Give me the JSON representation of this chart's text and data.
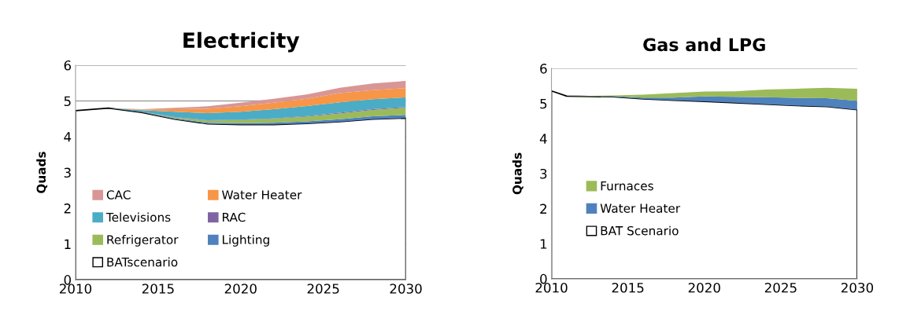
{
  "chart_data": [
    {
      "type": "area",
      "title": "Electricity",
      "ylabel": "Quads",
      "stacked": true,
      "x": [
        2010,
        2012,
        2014,
        2016,
        2018,
        2020,
        2022,
        2024,
        2026,
        2028,
        2030
      ],
      "series": [
        {
          "name": "BATscenario",
          "color": "#ffffff",
          "values": [
            4.73,
            4.8,
            4.68,
            4.49,
            4.36,
            4.34,
            4.34,
            4.37,
            4.42,
            4.49,
            4.52
          ]
        },
        {
          "name": "Lighting",
          "color": "#4f81bd",
          "values": [
            0,
            0,
            0.01,
            0.02,
            0.03,
            0.04,
            0.05,
            0.06,
            0.07,
            0.08,
            0.09
          ]
        },
        {
          "name": "Refrigerator",
          "color": "#9bbb59",
          "values": [
            0,
            0,
            0.01,
            0.03,
            0.06,
            0.09,
            0.11,
            0.13,
            0.16,
            0.18,
            0.2
          ]
        },
        {
          "name": "RAC",
          "color": "#8064a2",
          "values": [
            0,
            0,
            0,
            0.01,
            0.01,
            0.01,
            0.01,
            0.02,
            0.02,
            0.02,
            0.02
          ]
        },
        {
          "name": "Televisions",
          "color": "#4bacc6",
          "values": [
            0,
            0,
            0.04,
            0.15,
            0.2,
            0.22,
            0.26,
            0.28,
            0.29,
            0.28,
            0.27
          ]
        },
        {
          "name": "Water Heater",
          "color": "#f79646",
          "values": [
            0,
            0,
            0.02,
            0.07,
            0.12,
            0.15,
            0.18,
            0.2,
            0.26,
            0.25,
            0.26
          ]
        },
        {
          "name": "CAC",
          "color": "#d99694",
          "values": [
            0,
            0,
            0.01,
            0.04,
            0.07,
            0.1,
            0.11,
            0.12,
            0.15,
            0.19,
            0.2
          ]
        }
      ],
      "xlim": [
        2010,
        2030
      ],
      "xticks": [
        2010,
        2015,
        2020,
        2025,
        2030
      ],
      "ylim": [
        0,
        6
      ],
      "yticks": [
        0,
        1,
        2,
        3,
        4,
        5,
        6
      ],
      "grid": "y",
      "legend": "lower left"
    },
    {
      "type": "area",
      "title": "Gas and LPG",
      "ylabel": "Quads",
      "stacked": true,
      "x": [
        2010,
        2011,
        2014,
        2016,
        2018,
        2020,
        2022,
        2024,
        2026,
        2028,
        2030
      ],
      "series": [
        {
          "name": "BAT Scenario",
          "color": "#ffffff",
          "values": [
            5.36,
            5.21,
            5.19,
            5.13,
            5.09,
            5.06,
            5.02,
            4.98,
            4.94,
            4.91,
            4.82
          ]
        },
        {
          "name": "Water Heater",
          "color": "#4f81bd",
          "values": [
            0,
            0,
            0.02,
            0.04,
            0.08,
            0.14,
            0.17,
            0.2,
            0.22,
            0.24,
            0.26
          ]
        },
        {
          "name": "Furnaces",
          "color": "#9bbb59",
          "values": [
            0,
            0,
            0.02,
            0.08,
            0.13,
            0.14,
            0.16,
            0.22,
            0.26,
            0.3,
            0.34
          ]
        }
      ],
      "xlim": [
        2010,
        2030
      ],
      "xticks": [
        2010,
        2015,
        2020,
        2025,
        2030
      ],
      "ylim": [
        0,
        6
      ],
      "yticks": [
        0,
        1,
        2,
        3,
        4,
        5,
        6
      ],
      "grid": "y",
      "legend": "center left"
    }
  ]
}
